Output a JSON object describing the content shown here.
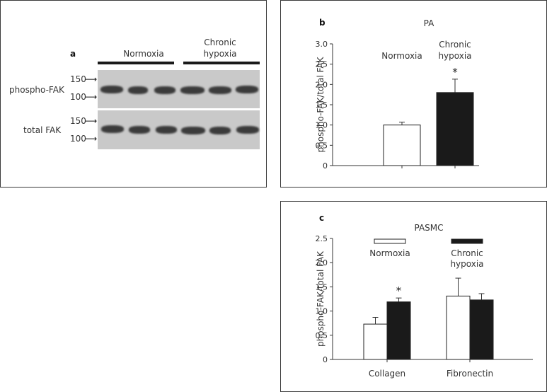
{
  "panel_a": {
    "letter": "a",
    "groups": [
      "Normoxia",
      "Chronic hypoxia"
    ],
    "group_hypoxia_lines": [
      "Chronic",
      "hypoxia"
    ],
    "rows": [
      "phospho-FAK",
      "total FAK"
    ],
    "markers": [
      "150",
      "100"
    ],
    "arrow": "⟶"
  },
  "chart_data": [
    {
      "panel": "b",
      "type": "bar",
      "title": "PA",
      "xlabel": "",
      "ylabel": "phospho-FAK/total FAK",
      "categories": [
        "Normoxia",
        "Chronic hypoxia"
      ],
      "category_lines": [
        [
          "Normoxia"
        ],
        [
          "Chronic",
          "hypoxia"
        ]
      ],
      "values": [
        1.0,
        1.8
      ],
      "errors": [
        0.07,
        0.33
      ],
      "colors": [
        "#ffffff",
        "#1a1a1a"
      ],
      "significance": [
        "",
        "*"
      ],
      "ylim": [
        0,
        3.0
      ],
      "yticks": [
        "0",
        "0.5",
        "1.0",
        "1.5",
        "2.0",
        "2.5",
        "3.0"
      ],
      "grid": false
    },
    {
      "panel": "c",
      "type": "bar",
      "title": "PASMC",
      "xlabel": "",
      "ylabel": "phospho-FAK/total FAK",
      "categories": [
        "Collagen",
        "Fibronectin"
      ],
      "series": [
        {
          "name": "Normoxia",
          "name_lines": [
            "Normoxia"
          ],
          "color": "#ffffff",
          "values": [
            0.73,
            1.31
          ],
          "errors": [
            0.14,
            0.37
          ]
        },
        {
          "name": "Chronic hypoxia",
          "name_lines": [
            "Chronic",
            "hypoxia"
          ],
          "color": "#1a1a1a",
          "values": [
            1.19,
            1.23
          ],
          "errors": [
            0.08,
            0.13
          ]
        }
      ],
      "significance": [
        [
          "",
          "*"
        ],
        [
          "",
          ""
        ]
      ],
      "ylim": [
        0,
        2.5
      ],
      "yticks": [
        "0",
        "0.5",
        "1.0",
        "1.5",
        "2.0",
        "2.5"
      ],
      "legend": "top",
      "grid": false
    }
  ]
}
